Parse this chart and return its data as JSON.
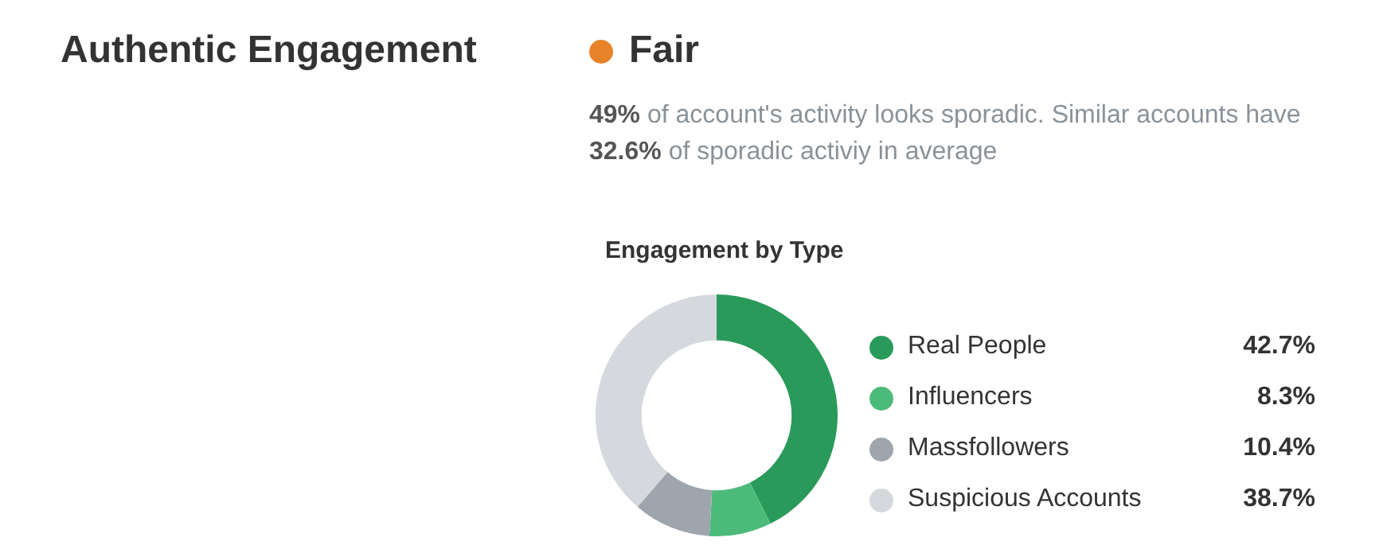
{
  "chart_data": {
    "type": "donut",
    "title": "Authentic Engagement",
    "subtitle": "Fair",
    "annotations": [
      "49% of account's activity looks sporadic. Similar accounts have 32.6% of sporadic activiy in average",
      "Engagement by Type"
    ],
    "categories": [
      "Real People",
      "Influencers",
      "Massfollowers",
      "Suspicious Accounts"
    ],
    "values": [
      42.7,
      8.3,
      10.4,
      38.7
    ],
    "colors": [
      "#2a9a5a",
      "#4cbb7a",
      "#9ea5ad",
      "#d5d9dd"
    ],
    "value_labels": [
      "42.7%",
      "8.3%",
      "10.4%",
      "38.7%"
    ],
    "legend": "right"
  }
}
